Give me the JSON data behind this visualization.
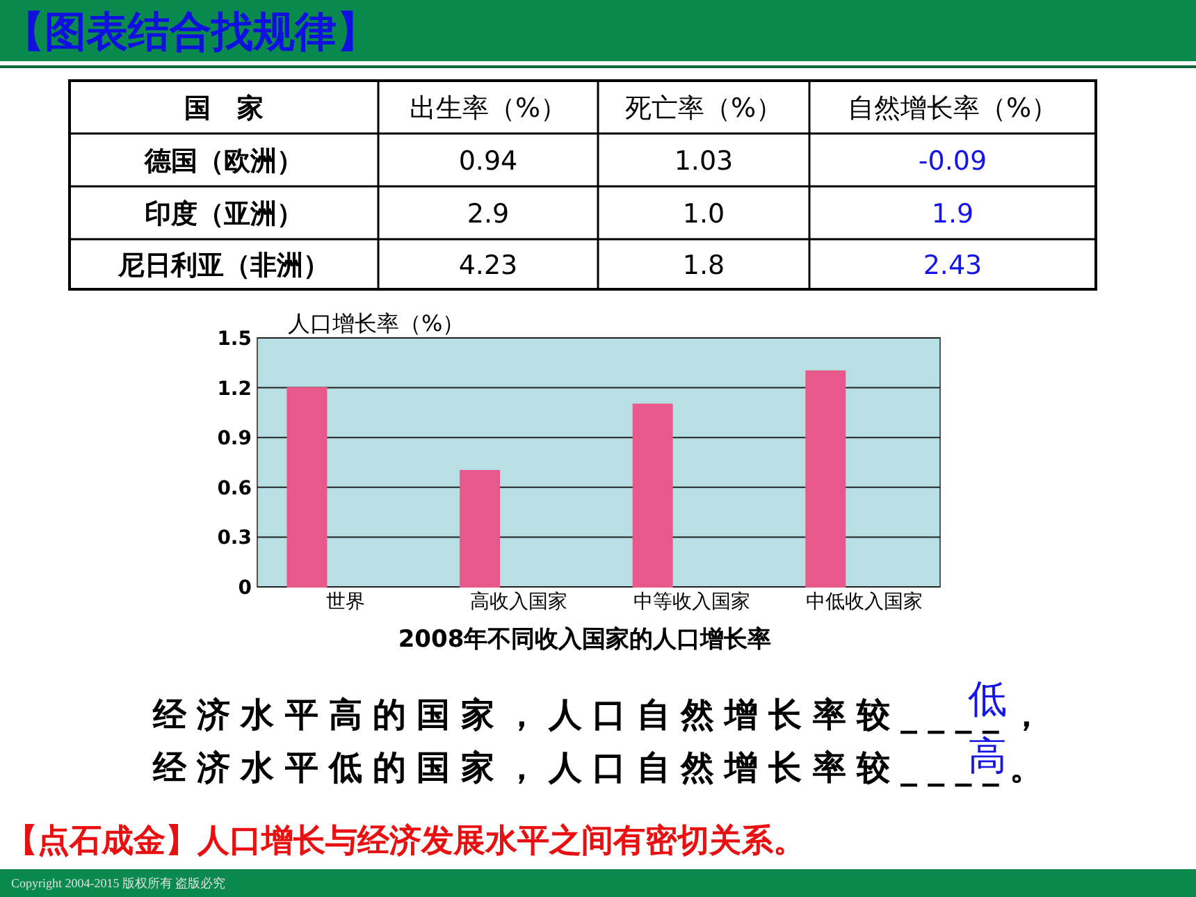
{
  "chart_data": [
    {
      "type": "other",
      "title": "【图表结合找规律】",
      "annotations": [
        "国　家",
        "出生率（%）",
        "死亡率（%）",
        "自然增长率（%）",
        "德国（欧洲）",
        "0.94",
        "1.03",
        "-0.09",
        "印度（亚洲）",
        "2.9",
        "1.0",
        "1.9",
        "尼日利亚（非洲）",
        "4.23",
        "1.8",
        "2.43"
      ]
    },
    {
      "type": "bar",
      "title": "2008年不同收入国家的人口增长率",
      "ylabel": "人口增长率（%）",
      "categories": [
        "世界",
        "高收入国家",
        "中等收入国家",
        "中低收入国家"
      ],
      "values": [
        1.2,
        0.7,
        1.1,
        1.3
      ],
      "color": "#e8588a",
      "ylim": [
        0,
        1.5
      ],
      "yticks": [
        0,
        0.3,
        0.6,
        0.9,
        1.2,
        1.5
      ],
      "grid": "y"
    },
    {
      "type": "other",
      "annotations": [
        "经济水平高的国家，人口自然增长率较____，",
        "低",
        "经济水平低的国家，人口自然增长率较____。",
        "高",
        "【点石成金】人口增长与经济发展水平之间有密切关系。",
        "Copyright 2004-2015 版权所有 盗版必究"
      ]
    }
  ]
}
